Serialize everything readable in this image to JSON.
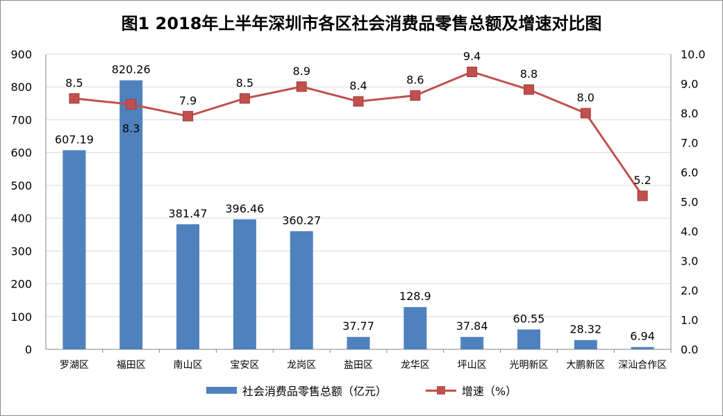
{
  "chart_data": {
    "type": "bar+line",
    "title": "图1 2018年上半年深圳市各区社会消费品零售总额及增速对比图",
    "categories": [
      "罗湖区",
      "福田区",
      "南山区",
      "宝安区",
      "龙岗区",
      "盐田区",
      "龙华区",
      "坪山区",
      "光明新区",
      "大鹏新区",
      "深汕合作区"
    ],
    "series": [
      {
        "name": "社会消费品零售总额（亿元）",
        "type": "bar",
        "axis": "left",
        "color": "#4f81bd",
        "values": [
          607.19,
          820.26,
          381.47,
          396.46,
          360.27,
          37.77,
          128.9,
          37.84,
          60.55,
          28.32,
          6.94
        ],
        "labels": [
          "607.19",
          "820.26",
          "381.47",
          "396.46",
          "360.27",
          "37.77",
          "128.9",
          "37.84",
          "60.55",
          "28.32",
          "6.94"
        ]
      },
      {
        "name": "增速（%）",
        "type": "line",
        "axis": "right",
        "color": "#c0504d",
        "values": [
          8.5,
          8.3,
          7.9,
          8.5,
          8.9,
          8.4,
          8.6,
          9.4,
          8.8,
          8.0,
          5.2
        ],
        "labels": [
          "8.5",
          "8.3",
          "7.9",
          "8.5",
          "8.9",
          "8.4",
          "8.6",
          "9.4",
          "8.8",
          "8.0",
          "5.2"
        ]
      }
    ],
    "left_axis": {
      "min": 0,
      "max": 900,
      "ticks": [
        "0",
        "100",
        "200",
        "300",
        "400",
        "500",
        "600",
        "700",
        "800",
        "900"
      ]
    },
    "right_axis": {
      "min": 0,
      "max": 10,
      "ticks": [
        "0.0",
        "1.0",
        "2.0",
        "3.0",
        "4.0",
        "5.0",
        "6.0",
        "7.0",
        "8.0",
        "9.0",
        "10.0"
      ]
    },
    "grid": true,
    "legend_position": "bottom"
  }
}
